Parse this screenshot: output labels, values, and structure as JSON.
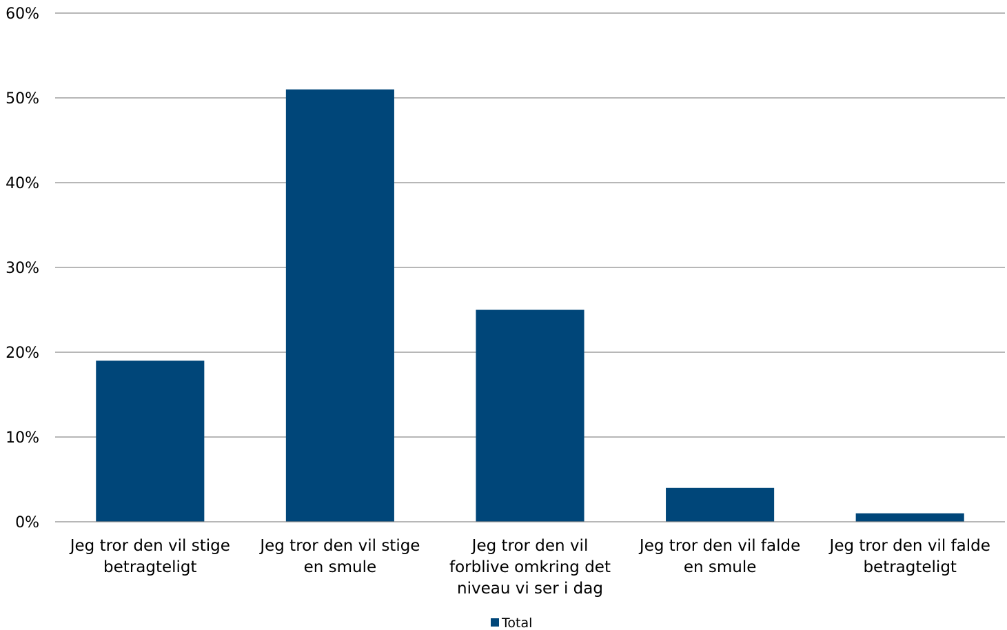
{
  "chart_data": {
    "type": "bar",
    "categories": [
      [
        "Jeg tror den vil stige",
        "betragteligt"
      ],
      [
        "Jeg tror den vil stige",
        "en smule"
      ],
      [
        "Jeg tror den vil",
        "forblive omkring det",
        "niveau vi ser i dag"
      ],
      [
        "Jeg tror den vil falde",
        "en smule"
      ],
      [
        "Jeg tror den vil falde",
        "betragteligt"
      ]
    ],
    "series": [
      {
        "name": "Total",
        "values": [
          19,
          51,
          25,
          4,
          1
        ],
        "color": "#004679"
      }
    ],
    "y_ticks": [
      {
        "value": 0,
        "label": "0%"
      },
      {
        "value": 10,
        "label": "10%"
      },
      {
        "value": 20,
        "label": "20%"
      },
      {
        "value": 30,
        "label": "30%"
      },
      {
        "value": 40,
        "label": "40%"
      },
      {
        "value": 50,
        "label": "50%"
      },
      {
        "value": 60,
        "label": "60%"
      }
    ],
    "ylim": [
      0,
      60
    ],
    "y_unit": "%",
    "grid": true,
    "legend_position": "bottom-center"
  }
}
